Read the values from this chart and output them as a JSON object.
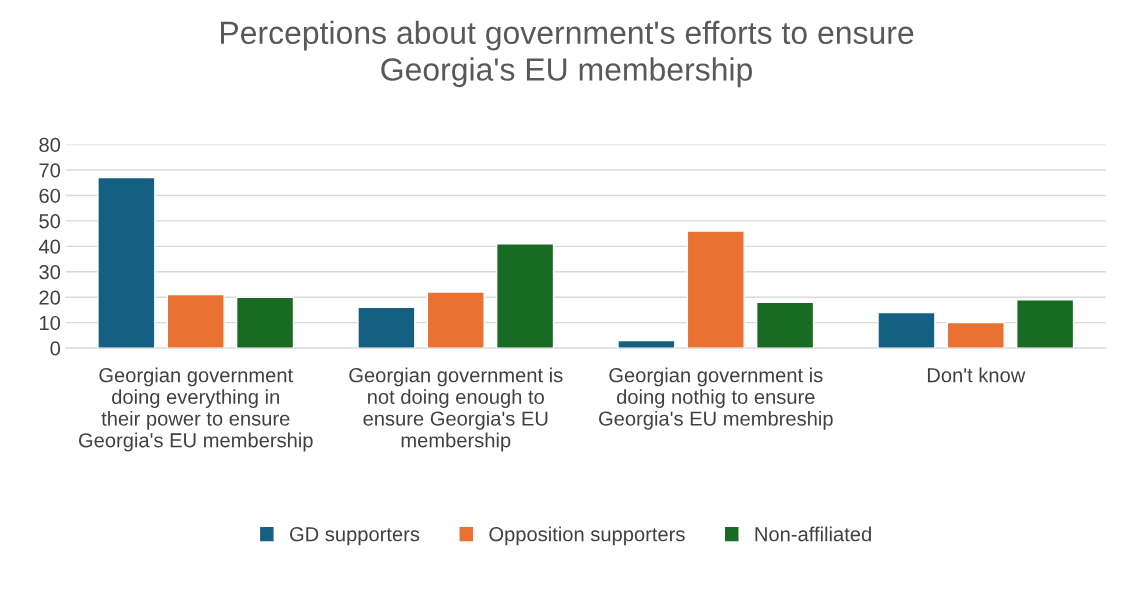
{
  "chart_data": {
    "type": "bar",
    "title": "Perceptions about government's efforts to ensure Georgia's EU membership",
    "categories": [
      "Georgian government doing everything in their power to ensure Georgia's EU membership",
      "Georgian government is not doing enough to ensure Georgia's EU membership",
      "Georgian government is doing nothig to ensure Georgia's EU membreship",
      "Don't know"
    ],
    "series": [
      {
        "name": "GD supporters",
        "color": "#156082",
        "values": [
          67,
          16,
          3,
          14
        ]
      },
      {
        "name": "Opposition supporters",
        "color": "#e97132",
        "values": [
          21,
          22,
          46,
          10
        ]
      },
      {
        "name": "Non-affiliated",
        "color": "#196b24",
        "values": [
          20,
          41,
          18,
          19
        ]
      }
    ],
    "ylim": [
      0,
      80
    ],
    "yticks": [
      0,
      10,
      20,
      30,
      40,
      50,
      60,
      70,
      80
    ],
    "grid": "y",
    "legend": "bottom"
  }
}
